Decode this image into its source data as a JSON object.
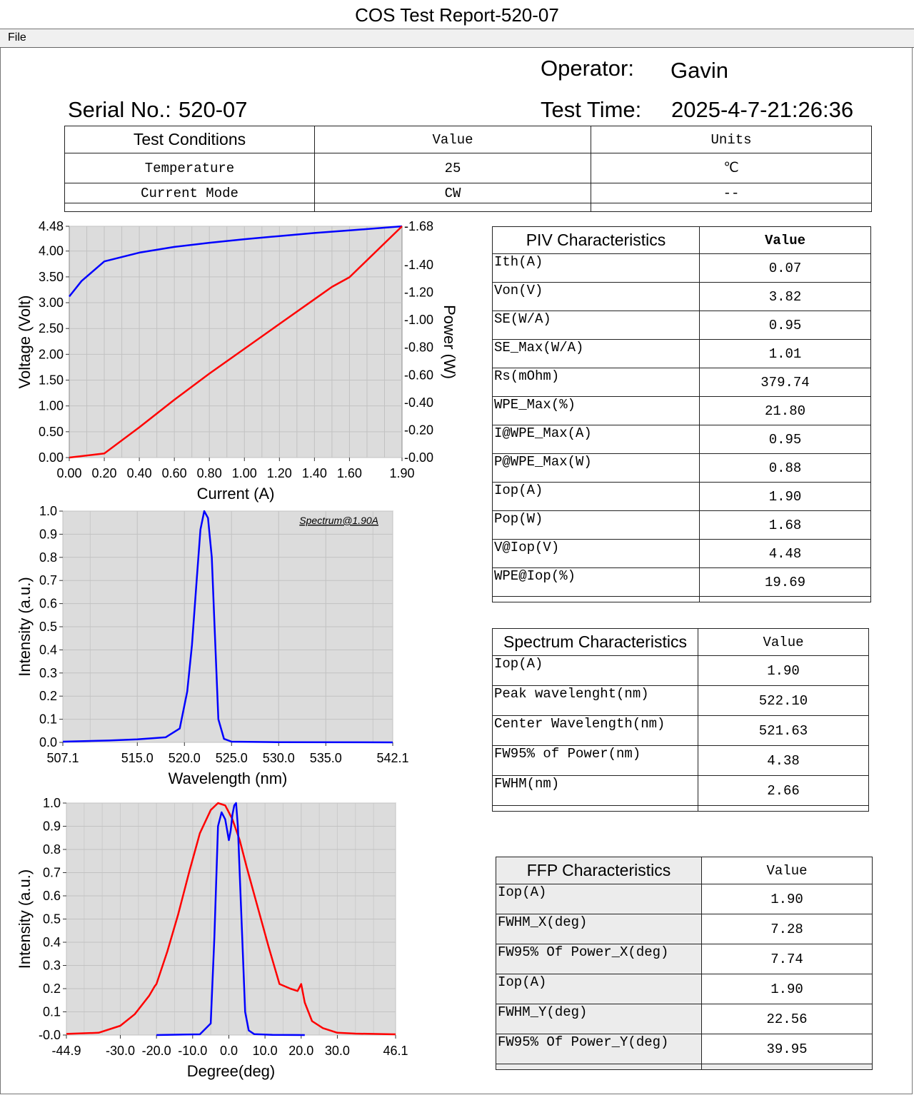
{
  "window": {
    "title": "COS Test Report-520-07"
  },
  "menu": {
    "file": "File"
  },
  "header": {
    "operator_label": "Operator:",
    "operator_value": "Gavin",
    "serial_label": "Serial No.:",
    "serial_value": "520-07",
    "test_time_label": "Test Time:",
    "test_time_value": "2025-4-7-21:26:36"
  },
  "conditions": {
    "headers": [
      "Test Conditions",
      "Value",
      "Units"
    ],
    "rows": [
      [
        "Temperature",
        "25",
        "℃"
      ],
      [
        "Current Mode",
        "CW",
        "--"
      ]
    ]
  },
  "piv": {
    "headers": [
      "PIV Characteristics",
      "Value"
    ],
    "rows": [
      [
        "Ith(A)",
        "0.07"
      ],
      [
        "Von(V)",
        "3.82"
      ],
      [
        "SE(W/A)",
        "0.95"
      ],
      [
        "SE_Max(W/A)",
        "1.01"
      ],
      [
        "Rs(mOhm)",
        "379.74"
      ],
      [
        "WPE_Max(%)",
        "21.80"
      ],
      [
        "I@WPE_Max(A)",
        "0.95"
      ],
      [
        "P@WPE_Max(W)",
        "0.88"
      ],
      [
        "Iop(A)",
        "1.90"
      ],
      [
        "Pop(W)",
        "1.68"
      ],
      [
        "V@Iop(V)",
        "4.48"
      ],
      [
        "WPE@Iop(%)",
        "19.69"
      ]
    ]
  },
  "spectrum": {
    "headers": [
      "Spectrum Characteristics",
      "Value"
    ],
    "rows": [
      [
        "Iop(A)",
        "1.90"
      ],
      [
        "Peak wavelenght(nm)",
        "522.10"
      ],
      [
        "Center Wavelength(nm)",
        "521.63"
      ],
      [
        "FW95% of Power(nm)",
        "4.38"
      ],
      [
        "FWHM(nm)",
        "2.66"
      ]
    ]
  },
  "ffp": {
    "headers": [
      "FFP Characteristics",
      "Value"
    ],
    "rows": [
      [
        "Iop(A)",
        "1.90"
      ],
      [
        "FWHM_X(deg)",
        "7.28"
      ],
      [
        "FW95% Of Power_X(deg)",
        "7.74"
      ],
      [
        "Iop(A)",
        "1.90"
      ],
      [
        "FWHM_Y(deg)",
        "22.56"
      ],
      [
        "FW95% Of Power_Y(deg)",
        "39.95"
      ]
    ]
  },
  "chart_data": [
    {
      "type": "line",
      "xlabel": "Current (A)",
      "ylabel": "Voltage (Volt)",
      "y2label": "Power (W)",
      "xlim": [
        0,
        1.9
      ],
      "ylim": [
        0,
        4.48
      ],
      "y2lim": [
        0,
        1.68
      ],
      "x_ticks": [
        "0.00",
        "0.20",
        "0.40",
        "0.60",
        "0.80",
        "1.00",
        "1.20",
        "1.40",
        "1.60",
        "1.90"
      ],
      "y_ticks": [
        "0.00",
        "0.50",
        "1.00",
        "1.50",
        "2.00",
        "2.50",
        "3.00",
        "3.50",
        "4.00",
        "4.48"
      ],
      "y2_ticks": [
        "-0.00",
        "-0.20",
        "-0.40",
        "-0.60",
        "-0.80",
        "-1.00",
        "-1.20",
        "-1.40",
        "-1.68"
      ],
      "grid": true,
      "series": [
        {
          "axis": "left",
          "color": "#0000ff",
          "x": [
            0,
            0.07,
            0.2,
            0.4,
            0.6,
            0.8,
            1.0,
            1.2,
            1.4,
            1.6,
            1.9
          ],
          "y": [
            3.12,
            3.42,
            3.8,
            3.97,
            4.08,
            4.16,
            4.23,
            4.29,
            4.35,
            4.4,
            4.48
          ]
        },
        {
          "axis": "right",
          "color": "#ff0000",
          "x": [
            0,
            0.2,
            0.4,
            0.6,
            0.8,
            1.0,
            1.2,
            1.4,
            1.5,
            1.6,
            1.9
          ],
          "y": [
            0.0,
            0.03,
            0.22,
            0.42,
            0.61,
            0.79,
            0.97,
            1.15,
            1.24,
            1.31,
            1.68
          ]
        }
      ]
    },
    {
      "type": "line",
      "annotation": "Spectrum@1.90A",
      "xlabel": "Wavelength (nm)",
      "ylabel": "Intensity (a.u.)",
      "xlim": [
        507.1,
        542.1
      ],
      "ylim": [
        0,
        1
      ],
      "x_ticks": [
        "507.1",
        "515.0",
        "520.0",
        "525.0",
        "530.0",
        "535.0",
        "542.1"
      ],
      "y_ticks": [
        "0.0",
        "0.1",
        "0.2",
        "0.3",
        "0.4",
        "0.5",
        "0.6",
        "0.7",
        "0.8",
        "0.9",
        "1.0"
      ],
      "grid": true,
      "series": [
        {
          "color": "#0000ff",
          "x": [
            507.1,
            512.0,
            515.0,
            518.0,
            519.5,
            520.3,
            520.8,
            521.3,
            521.7,
            522.1,
            522.5,
            522.9,
            523.2,
            523.6,
            524.2,
            525.0,
            530.0,
            542.1
          ],
          "y": [
            0.003,
            0.008,
            0.013,
            0.022,
            0.06,
            0.22,
            0.42,
            0.7,
            0.92,
            1.0,
            0.97,
            0.8,
            0.5,
            0.1,
            0.015,
            0.003,
            0.001,
            0.0
          ]
        }
      ]
    },
    {
      "type": "line",
      "xlabel": "Degree(deg)",
      "ylabel": "Intensity (a.u.)",
      "xlim": [
        -44.9,
        46.1
      ],
      "ylim": [
        0,
        1
      ],
      "x_ticks": [
        "-44.9",
        "-30.0",
        "-20.0",
        "-10.0",
        "0.0",
        "10.0",
        "20.0",
        "30.0",
        "46.1"
      ],
      "y_ticks": [
        "-0.0",
        "0.1",
        "0.2",
        "0.3",
        "0.4",
        "0.5",
        "0.6",
        "0.7",
        "0.8",
        "0.9",
        "1.0"
      ],
      "grid": true,
      "series": [
        {
          "color": "#ff0000",
          "x": [
            -44.9,
            -36,
            -30,
            -26,
            -22,
            -20.5,
            -20,
            -17,
            -14,
            -11,
            -8,
            -5,
            -3,
            -1,
            0,
            1,
            3,
            5,
            8,
            11,
            14,
            17,
            19,
            20,
            20.5,
            21,
            23,
            26,
            30,
            35,
            46.1
          ],
          "y": [
            0.005,
            0.01,
            0.04,
            0.09,
            0.17,
            0.21,
            0.22,
            0.36,
            0.52,
            0.7,
            0.87,
            0.97,
            1.0,
            0.99,
            0.96,
            0.93,
            0.84,
            0.72,
            0.55,
            0.38,
            0.22,
            0.2,
            0.19,
            0.22,
            0.18,
            0.14,
            0.06,
            0.03,
            0.01,
            0.006,
            0.003
          ]
        },
        {
          "color": "#0000ff",
          "x": [
            -20,
            -8,
            -5,
            -4,
            -3,
            -2,
            -1,
            0,
            0.5,
            1,
            1.5,
            2,
            2.5,
            3.5,
            4.5,
            5.5,
            7,
            12,
            21
          ],
          "y": [
            0.0,
            0.003,
            0.05,
            0.42,
            0.9,
            0.96,
            0.93,
            0.84,
            0.88,
            0.95,
            0.99,
            1.0,
            0.9,
            0.5,
            0.1,
            0.02,
            0.004,
            0.001,
            0.0
          ]
        }
      ]
    }
  ]
}
